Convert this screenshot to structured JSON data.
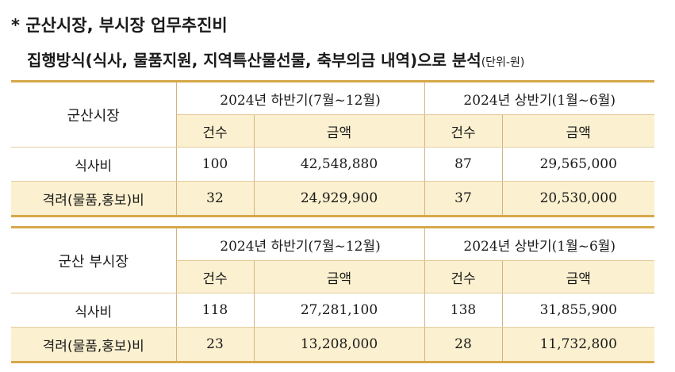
{
  "title": {
    "line1": "*  군산시장, 부시장 업무추진비",
    "line2": "집행방식(식사, 물품지원, 지역특산물선물, 축부의금 내역)으로 분석",
    "unit": "(단위-원)"
  },
  "tables": [
    {
      "name": "군산시장",
      "period1": "2024년 하반기(7월~12월)",
      "period2": "2024년 상반기(1월~6월)",
      "col_count": "건수",
      "col_amount": "금액",
      "rows": [
        {
          "label": "식사비",
          "c1": "100",
          "a1": "42,548,880",
          "c2": "87",
          "a2": "29,565,000"
        },
        {
          "label": "격려(물품,홍보)비",
          "c1": "32",
          "a1": "24,929,900",
          "c2": "37",
          "a2": "20,530,000"
        }
      ]
    },
    {
      "name": "군산 부시장",
      "period1": "2024년 하반기(7월~12월)",
      "period2": "2024년 상반기(1월~6월)",
      "col_count": "건수",
      "col_amount": "금액",
      "rows": [
        {
          "label": "식사비",
          "c1": "118",
          "a1": "27,281,100",
          "c2": "138",
          "a2": "31,855,900"
        },
        {
          "label": "격려(물품,홍보)비",
          "c1": "23",
          "a1": "13,208,000",
          "c2": "28",
          "a2": "11,732,800"
        }
      ]
    }
  ]
}
